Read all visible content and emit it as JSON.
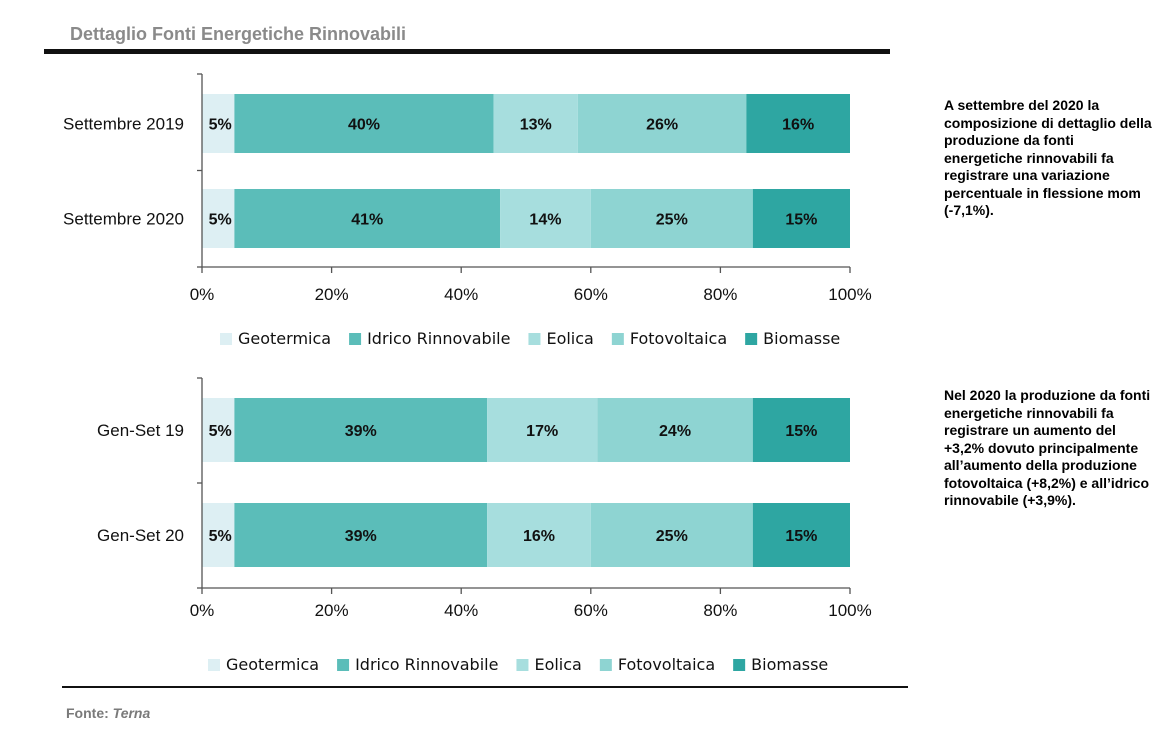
{
  "header": {
    "title": "Dettaglio Fonti Energetiche Rinnovabili"
  },
  "colors": {
    "Geotermica": "#DDEFF3",
    "Idrico Rinnovabile": "#5BBDB9",
    "Eolica": "#A7DEDE",
    "Fotovoltaica": "#8ED4D2",
    "Biomasse": "#2EA6A2"
  },
  "chart_data": [
    {
      "type": "bar",
      "orientation": "horizontal",
      "stacked": true,
      "categories": [
        "Settembre 2019",
        "Settembre 2020"
      ],
      "series": [
        {
          "name": "Geotermica",
          "values": [
            5,
            5
          ],
          "labels": [
            "5%",
            "5%"
          ]
        },
        {
          "name": "Idrico Rinnovabile",
          "values": [
            40,
            41
          ],
          "labels": [
            "40%",
            "41%"
          ]
        },
        {
          "name": "Eolica",
          "values": [
            13,
            14
          ],
          "labels": [
            "13%",
            "14%"
          ]
        },
        {
          "name": "Fotovoltaica",
          "values": [
            26,
            25
          ],
          "labels": [
            "26%",
            "25%"
          ]
        },
        {
          "name": "Biomasse",
          "values": [
            16,
            15
          ],
          "labels": [
            "16%",
            "15%"
          ]
        }
      ],
      "xlim": [
        0,
        100
      ],
      "xticks": [
        "0%",
        "20%",
        "40%",
        "60%",
        "80%",
        "100%"
      ],
      "legend": "bottom",
      "grid": false
    },
    {
      "type": "bar",
      "orientation": "horizontal",
      "stacked": true,
      "categories": [
        "Gen-Set 19",
        "Gen-Set 20"
      ],
      "series": [
        {
          "name": "Geotermica",
          "values": [
            5,
            5
          ],
          "labels": [
            "5%",
            "5%"
          ]
        },
        {
          "name": "Idrico Rinnovabile",
          "values": [
            39,
            39
          ],
          "labels": [
            "39%",
            "39%"
          ]
        },
        {
          "name": "Eolica",
          "values": [
            17,
            16
          ],
          "labels": [
            "17%",
            "16%"
          ]
        },
        {
          "name": "Fotovoltaica",
          "values": [
            24,
            25
          ],
          "labels": [
            "24%",
            "25%"
          ]
        },
        {
          "name": "Biomasse",
          "values": [
            15,
            15
          ],
          "labels": [
            "15%",
            "15%"
          ]
        }
      ],
      "xlim": [
        0,
        100
      ],
      "xticks": [
        "0%",
        "20%",
        "40%",
        "60%",
        "80%",
        "100%"
      ],
      "legend": "bottom",
      "grid": false
    }
  ],
  "notes": [
    "A settembre del 2020  la composizione di dettaglio della produzione da  fonti energetiche rinnovabili fa registrare una variazione percentuale in flessione mom (-7,1%).",
    "Nel 2020 la produzione da fonti energetiche rinnovabili fa registrare un aumento del +3,2% dovuto principalmente all’aumento della produzione fotovoltaica (+8,2%) e all’idrico rinnovabile (+3,9%)."
  ],
  "footer": {
    "source_label": "Fonte:",
    "source_name": "Terna"
  }
}
